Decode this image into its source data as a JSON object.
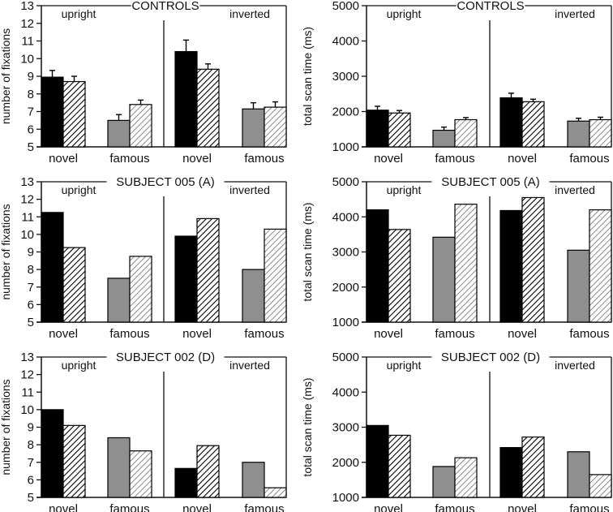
{
  "figure": {
    "rows": [
      "CONTROLS",
      "SUBJECT 005 (A)",
      "SUBJECT 002 (D)"
    ],
    "conditions": [
      "upright",
      "inverted"
    ],
    "categories": [
      "novel",
      "famous"
    ],
    "colors": {
      "novel_solid": "#000000",
      "famous_solid": "#8f8f8f",
      "novel_hatch": "#000000",
      "famous_hatch": "#8a8a8a",
      "axis": "#111111"
    }
  },
  "chart_data": [
    {
      "type": "bar",
      "title": "CONTROLS",
      "ylabel": "number of fixations",
      "ylim": [
        5,
        13
      ],
      "yticks": [
        5,
        6,
        7,
        8,
        9,
        10,
        11,
        12,
        13
      ],
      "groups": [
        "upright",
        "inverted"
      ],
      "categories": [
        "novel",
        "famous"
      ],
      "series": [
        {
          "name": "solid",
          "values": {
            "upright": {
              "novel": 8.95,
              "famous": 6.5
            },
            "inverted": {
              "novel": 10.4,
              "famous": 7.15
            }
          }
        },
        {
          "name": "hatched",
          "values": {
            "upright": {
              "novel": 8.7,
              "famous": 7.4
            },
            "inverted": {
              "novel": 9.4,
              "famous": 7.25
            }
          }
        }
      ],
      "error": [
        {
          "name": "solid",
          "values": {
            "upright": {
              "novel": 0.38,
              "famous": 0.33
            },
            "inverted": {
              "novel": 0.65,
              "famous": 0.35
            }
          }
        },
        {
          "name": "hatched",
          "values": {
            "upright": {
              "novel": 0.3,
              "famous": 0.25
            },
            "inverted": {
              "novel": 0.3,
              "famous": 0.3
            }
          }
        }
      ]
    },
    {
      "type": "bar",
      "title": "CONTROLS",
      "ylabel": "total scan time (ms)",
      "ylim": [
        1000,
        5000
      ],
      "yticks": [
        1000,
        2000,
        3000,
        4000,
        5000
      ],
      "groups": [
        "upright",
        "inverted"
      ],
      "categories": [
        "novel",
        "famous"
      ],
      "series": [
        {
          "name": "solid",
          "values": {
            "upright": {
              "novel": 2040,
              "famous": 1470
            },
            "inverted": {
              "novel": 2390,
              "famous": 1730
            }
          }
        },
        {
          "name": "hatched",
          "values": {
            "upright": {
              "novel": 1960,
              "famous": 1770
            },
            "inverted": {
              "novel": 2280,
              "famous": 1770
            }
          }
        }
      ],
      "error": [
        {
          "name": "solid",
          "values": {
            "upright": {
              "novel": 110,
              "famous": 90
            },
            "inverted": {
              "novel": 130,
              "famous": 80
            }
          }
        },
        {
          "name": "hatched",
          "values": {
            "upright": {
              "novel": 70,
              "famous": 60
            },
            "inverted": {
              "novel": 70,
              "famous": 70
            }
          }
        }
      ]
    },
    {
      "type": "bar",
      "title": "SUBJECT 005 (A)",
      "ylabel": "number of fixations",
      "ylim": [
        5,
        13
      ],
      "yticks": [
        5,
        6,
        7,
        8,
        9,
        10,
        11,
        12,
        13
      ],
      "groups": [
        "upright",
        "inverted"
      ],
      "categories": [
        "novel",
        "famous"
      ],
      "series": [
        {
          "name": "solid",
          "values": {
            "upright": {
              "novel": 11.25,
              "famous": 7.5
            },
            "inverted": {
              "novel": 9.9,
              "famous": 8.0
            }
          }
        },
        {
          "name": "hatched",
          "values": {
            "upright": {
              "novel": 9.25,
              "famous": 8.75
            },
            "inverted": {
              "novel": 10.9,
              "famous": 10.3
            }
          }
        }
      ]
    },
    {
      "type": "bar",
      "title": "SUBJECT 005 (A)",
      "ylabel": "total scan time (ms)",
      "ylim": [
        1000,
        5000
      ],
      "yticks": [
        1000,
        2000,
        3000,
        4000,
        5000
      ],
      "groups": [
        "upright",
        "inverted"
      ],
      "categories": [
        "novel",
        "famous"
      ],
      "series": [
        {
          "name": "solid",
          "values": {
            "upright": {
              "novel": 4200,
              "famous": 3420
            },
            "inverted": {
              "novel": 4180,
              "famous": 3050
            }
          }
        },
        {
          "name": "hatched",
          "values": {
            "upright": {
              "novel": 3640,
              "famous": 4360
            },
            "inverted": {
              "novel": 4550,
              "famous": 4200
            }
          }
        }
      ]
    },
    {
      "type": "bar",
      "title": "SUBJECT 002 (D)",
      "ylabel": "number of fixations",
      "ylim": [
        5,
        13
      ],
      "yticks": [
        5,
        6,
        7,
        8,
        9,
        10,
        11,
        12,
        13
      ],
      "groups": [
        "upright",
        "inverted"
      ],
      "categories": [
        "novel",
        "famous"
      ],
      "series": [
        {
          "name": "solid",
          "values": {
            "upright": {
              "novel": 10.0,
              "famous": 8.4
            },
            "inverted": {
              "novel": 6.65,
              "famous": 7.0
            }
          }
        },
        {
          "name": "hatched",
          "values": {
            "upright": {
              "novel": 9.1,
              "famous": 7.65
            },
            "inverted": {
              "novel": 7.95,
              "famous": 5.55
            }
          }
        }
      ]
    },
    {
      "type": "bar",
      "title": "SUBJECT 002 (D)",
      "ylabel": "total scan time (ms)",
      "ylim": [
        1000,
        5000
      ],
      "yticks": [
        1000,
        2000,
        3000,
        4000,
        5000
      ],
      "groups": [
        "upright",
        "inverted"
      ],
      "categories": [
        "novel",
        "famous"
      ],
      "series": [
        {
          "name": "solid",
          "values": {
            "upright": {
              "novel": 3050,
              "famous": 1880
            },
            "inverted": {
              "novel": 2420,
              "famous": 2300
            }
          }
        },
        {
          "name": "hatched",
          "values": {
            "upright": {
              "novel": 2770,
              "famous": 2130
            },
            "inverted": {
              "novel": 2720,
              "famous": 1650
            }
          }
        }
      ]
    }
  ]
}
